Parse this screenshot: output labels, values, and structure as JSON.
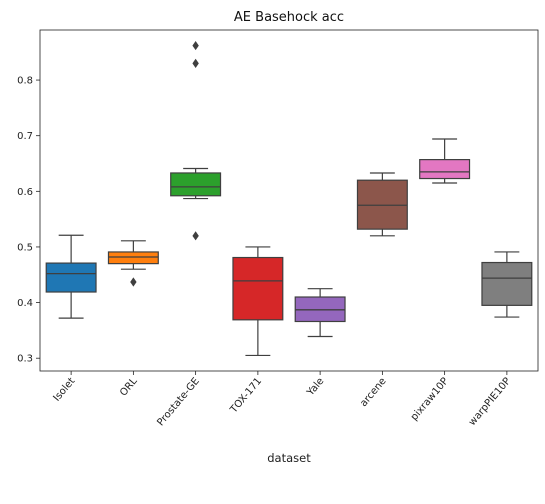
{
  "chart_data": {
    "type": "box",
    "title": "AE Basehock acc",
    "xlabel": "dataset",
    "ylabel": "",
    "ylim": [
      0.277,
      0.89
    ],
    "yticks": [
      0.3,
      0.4,
      0.5,
      0.6,
      0.7,
      0.8
    ],
    "grid": false,
    "categories": [
      "Isolet",
      "ORL",
      "Prostate-GE",
      "TOX-171",
      "Yale",
      "arcene",
      "pixraw10P",
      "warpPIE10P"
    ],
    "boxes": [
      {
        "category": "Isolet",
        "color": "#1f77b4",
        "whisker_low": 0.372,
        "q1": 0.419,
        "median": 0.452,
        "q3": 0.471,
        "whisker_high": 0.521,
        "outliers": []
      },
      {
        "category": "ORL",
        "color": "#ff7f0e",
        "whisker_low": 0.46,
        "q1": 0.47,
        "median": 0.482,
        "q3": 0.491,
        "whisker_high": 0.511,
        "outliers": [
          0.437
        ]
      },
      {
        "category": "Prostate-GE",
        "color": "#2ca02c",
        "whisker_low": 0.587,
        "q1": 0.592,
        "median": 0.608,
        "q3": 0.633,
        "whisker_high": 0.641,
        "outliers": [
          0.52,
          0.83,
          0.862
        ]
      },
      {
        "category": "TOX-171",
        "color": "#d62728",
        "whisker_low": 0.305,
        "q1": 0.369,
        "median": 0.439,
        "q3": 0.481,
        "whisker_high": 0.5,
        "outliers": []
      },
      {
        "category": "Yale",
        "color": "#9467bd",
        "whisker_low": 0.339,
        "q1": 0.366,
        "median": 0.387,
        "q3": 0.41,
        "whisker_high": 0.425,
        "outliers": []
      },
      {
        "category": "arcene",
        "color": "#8c564b",
        "whisker_low": 0.52,
        "q1": 0.532,
        "median": 0.575,
        "q3": 0.62,
        "whisker_high": 0.633,
        "outliers": []
      },
      {
        "category": "pixraw10P",
        "color": "#e377c2",
        "whisker_low": 0.615,
        "q1": 0.623,
        "median": 0.635,
        "q3": 0.657,
        "whisker_high": 0.694,
        "outliers": []
      },
      {
        "category": "warpPIE10P",
        "color": "#7f7f7f",
        "whisker_low": 0.374,
        "q1": 0.395,
        "median": 0.444,
        "q3": 0.472,
        "whisker_high": 0.491,
        "outliers": []
      }
    ]
  }
}
